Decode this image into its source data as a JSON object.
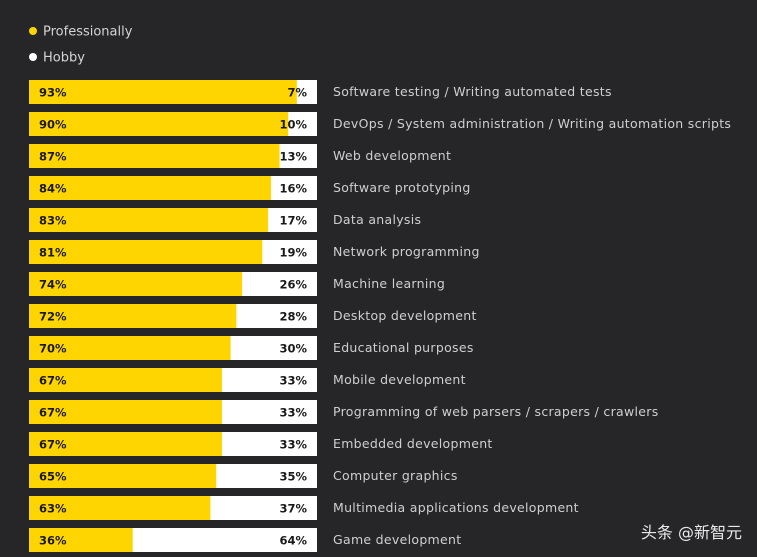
{
  "colors": {
    "professional": "#ffd500",
    "hobby": "#ffffff",
    "background": "#262629"
  },
  "chart_data": {
    "type": "bar",
    "stacked": true,
    "orientation": "horizontal",
    "legend": {
      "placement": "top-left",
      "entries": [
        "Professionally",
        "Hobby"
      ]
    },
    "series": [
      {
        "name": "Professionally",
        "values": [
          93,
          90,
          87,
          84,
          83,
          81,
          74,
          72,
          70,
          67,
          67,
          67,
          65,
          63,
          36
        ]
      },
      {
        "name": "Hobby",
        "values": [
          7,
          10,
          13,
          16,
          17,
          19,
          26,
          28,
          30,
          33,
          33,
          33,
          35,
          37,
          64
        ]
      }
    ],
    "categories": [
      "Software testing / Writing automated tests",
      "DevOps / System administration / Writing automation scripts",
      "Web development",
      "Software prototyping",
      "Data analysis",
      "Network programming",
      "Machine learning",
      "Desktop development",
      "Educational purposes",
      "Mobile development",
      "Programming of web parsers / scrapers / crawlers",
      "Embedded development",
      "Computer graphics",
      "Multimedia applications development",
      "Game development"
    ],
    "xlim": [
      0,
      100
    ],
    "value_suffix": "%"
  },
  "watermark": "头条 @新智元"
}
